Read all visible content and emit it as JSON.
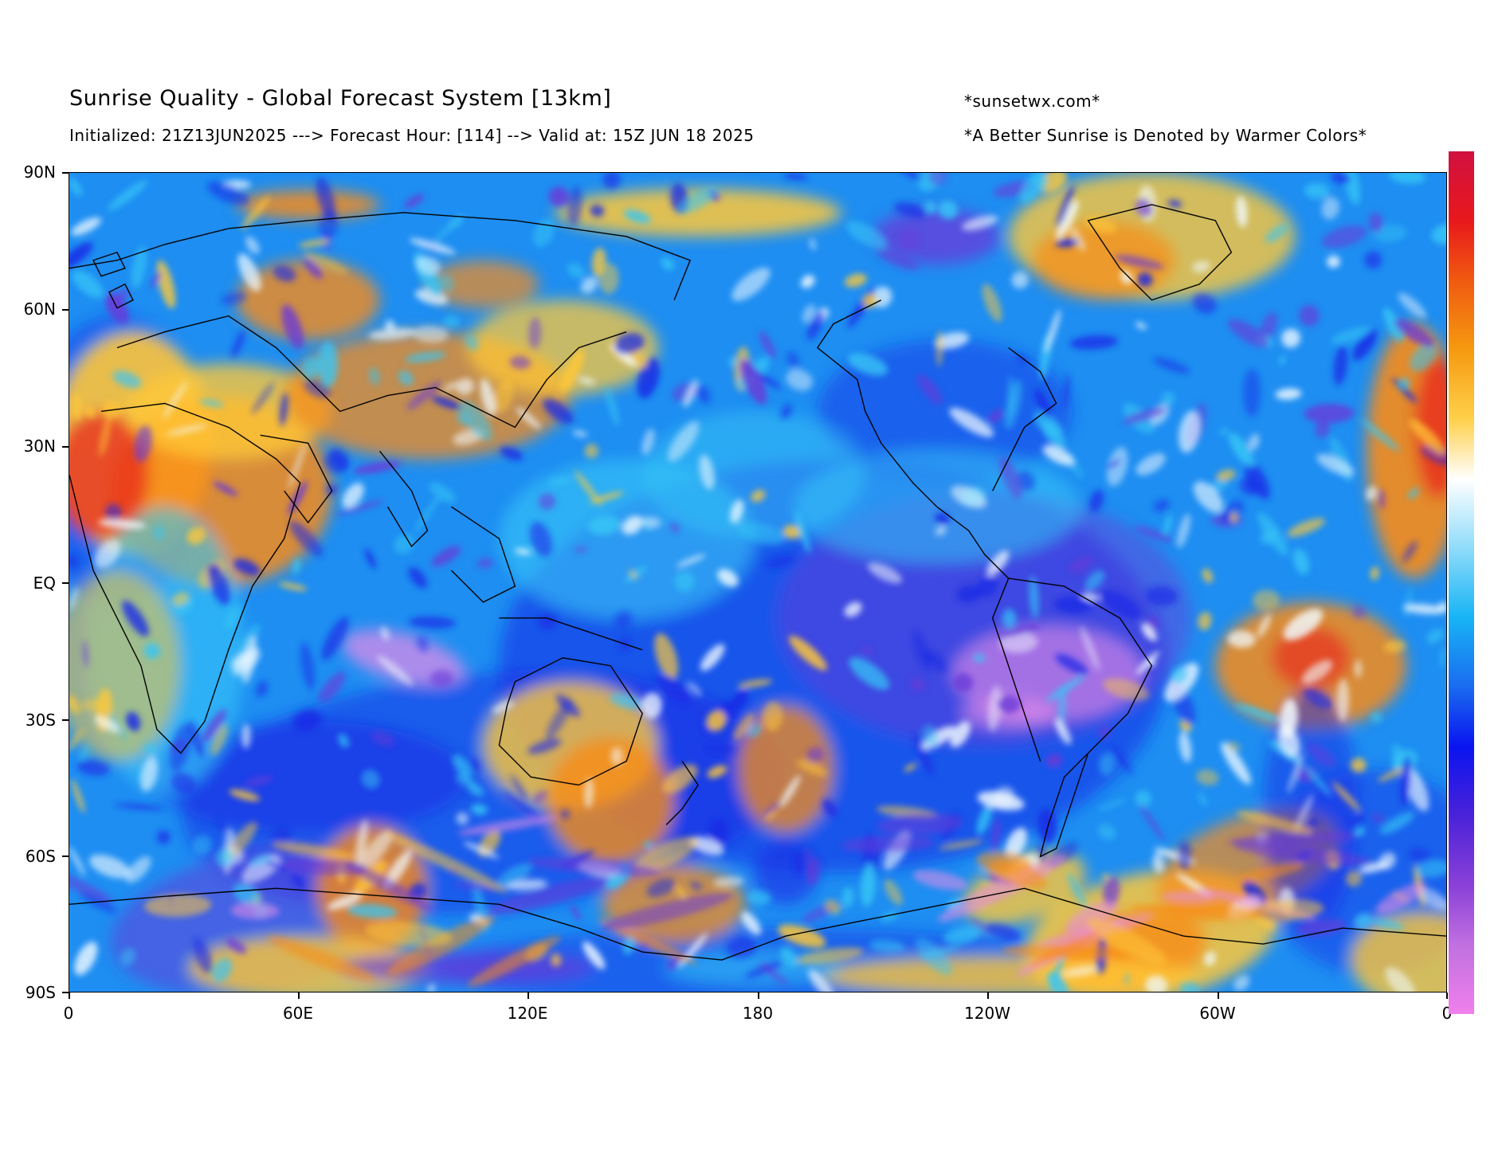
{
  "header": {
    "title": "Sunrise Quality - Global Forecast System [13km]",
    "subtitle": "Initialized: 21Z13JUN2025 ---> Forecast Hour: [114] --> Valid at: 15Z JUN 18 2025",
    "site": "*sunsetwx.com*",
    "note": "*A Better Sunrise is Denoted by Warmer Colors*"
  },
  "map": {
    "projection": "equirectangular",
    "central_longitude": 180,
    "lat_labels": [
      "90N",
      "60N",
      "30N",
      "EQ",
      "30S",
      "60S",
      "90S"
    ],
    "lon_labels": [
      "0",
      "60E",
      "120E",
      "180",
      "120W",
      "60W",
      "0"
    ]
  },
  "colorbar": {
    "orientation": "vertical",
    "meaning": "sunrise quality; warmer colors = better sunrise",
    "colors_top_to_bottom": [
      "#d01040",
      "#e8181c",
      "#f05a10",
      "#f59a10",
      "#ffd04a",
      "#ffffff",
      "#8fdcfa",
      "#18b4f5",
      "#1a6cf0",
      "#0a14f0",
      "#4a22d8",
      "#8a40d8",
      "#c070e0",
      "#f080ec"
    ]
  },
  "palette": {
    "ocean_base": "#1e8ef2",
    "deep": "#1a2ae6",
    "purple": "#6a3ad8",
    "pink": "#e88ce8",
    "cyan": "#36c6f6",
    "white": "#f2fbff",
    "yellow": "#ffc838",
    "orange": "#f88c18",
    "red": "#e83020"
  }
}
